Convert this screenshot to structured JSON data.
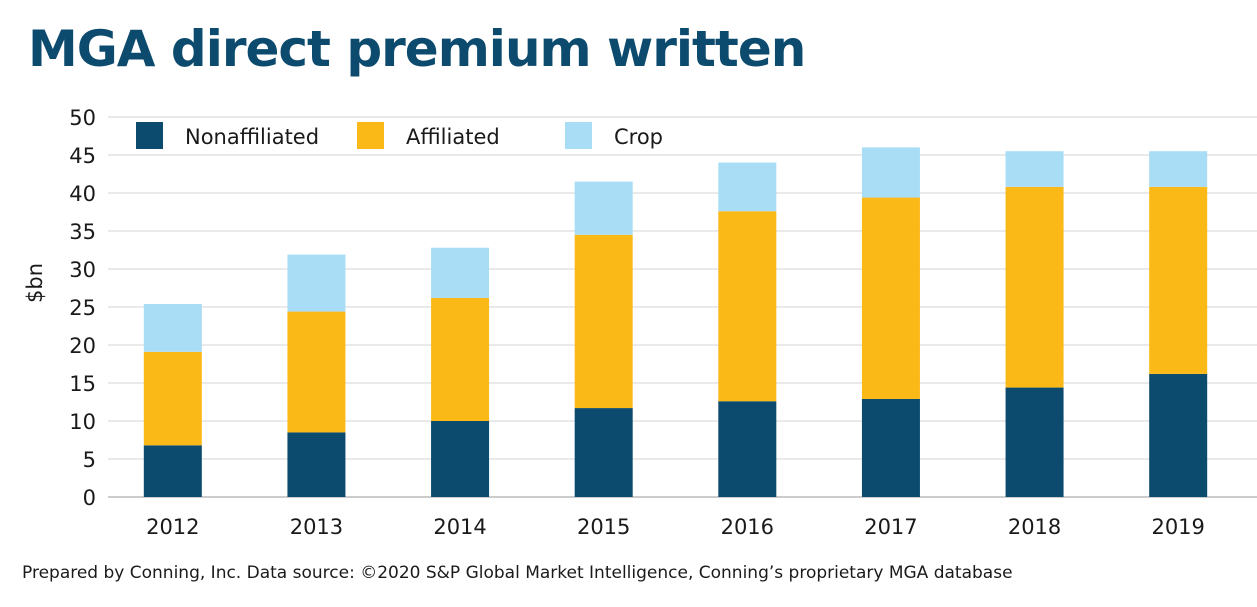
{
  "title": "MGA direct premium written",
  "source": "Prepared by Conning, Inc. Data source: ©2020 S&P Global Market Intelligence, Conning’s proprietary MGA database",
  "chart_data": {
    "type": "bar",
    "stacked": true,
    "title": "MGA direct premium written",
    "xlabel": "",
    "ylabel": "$bn",
    "ylim": [
      0,
      50
    ],
    "yticks": [
      0,
      5,
      10,
      15,
      20,
      25,
      30,
      35,
      40,
      45,
      50
    ],
    "grid": true,
    "legend_position": "top-left",
    "categories": [
      "2012",
      "2013",
      "2014",
      "2015",
      "2016",
      "2017",
      "2018",
      "2019"
    ],
    "series": [
      {
        "name": "Nonaffiliated",
        "color": "#0c4a6e",
        "values": [
          6.8,
          8.5,
          10.0,
          11.7,
          12.6,
          12.9,
          14.4,
          16.2
        ]
      },
      {
        "name": "Affiliated",
        "color": "#fbb918",
        "values": [
          12.3,
          15.9,
          16.2,
          22.8,
          25.0,
          26.5,
          26.4,
          24.6
        ]
      },
      {
        "name": "Crop",
        "color": "#a8ddf5",
        "values": [
          6.3,
          7.5,
          6.6,
          7.0,
          6.4,
          6.6,
          4.7,
          4.7
        ]
      }
    ]
  }
}
